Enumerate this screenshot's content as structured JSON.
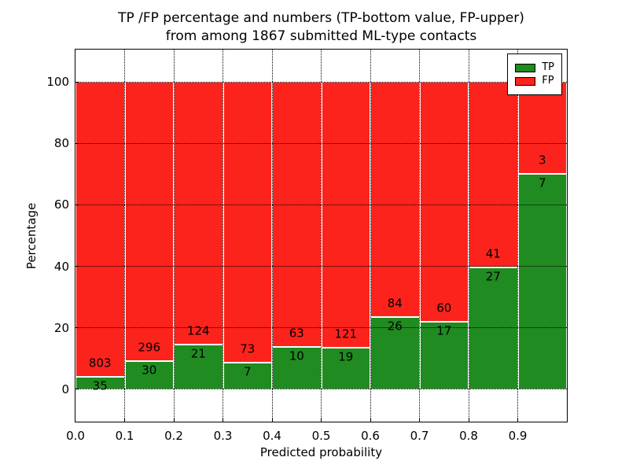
{
  "chart_data": {
    "type": "bar",
    "stacked": true,
    "normalized_to_percent": 100,
    "title_line1": "TP /FP percentage and numbers (TP-bottom value, FP-upper)",
    "title_line2": "from among 1867 submitted ML-type contacts",
    "total_contacts_in_title": 1867,
    "xlabel": "Predicted probability",
    "ylabel": "Percentage",
    "x_bin_edges": [
      0.0,
      0.1,
      0.2,
      0.3,
      0.4,
      0.5,
      0.6,
      0.7,
      0.8,
      0.9,
      1.0
    ],
    "x_tick_labels": [
      "0.0",
      "0.1",
      "0.2",
      "0.3",
      "0.4",
      "0.5",
      "0.6",
      "0.7",
      "0.8",
      "0.9"
    ],
    "y_ticks": [
      0,
      20,
      40,
      60,
      80,
      100
    ],
    "xlim": [
      0,
      1
    ],
    "ylim": [
      -10.5,
      110.5
    ],
    "grid": true,
    "grid_style": "dotted-black",
    "bar_edge_color": "#ffffff",
    "series": [
      {
        "name": "TP",
        "color": "#208b20",
        "position": "bottom",
        "counts": [
          35,
          30,
          21,
          7,
          10,
          19,
          26,
          17,
          27,
          7
        ]
      },
      {
        "name": "FP",
        "color": "#fb231c",
        "position": "top",
        "counts": [
          803,
          296,
          124,
          73,
          63,
          121,
          84,
          60,
          41,
          3
        ]
      }
    ],
    "tp_percent_by_bin": [
      4.18,
      9.2,
      14.48,
      8.75,
      13.7,
      13.57,
      23.64,
      22.08,
      39.71,
      70.0
    ],
    "legend": {
      "position": "upper right",
      "entries": [
        "TP",
        "FP"
      ]
    }
  }
}
